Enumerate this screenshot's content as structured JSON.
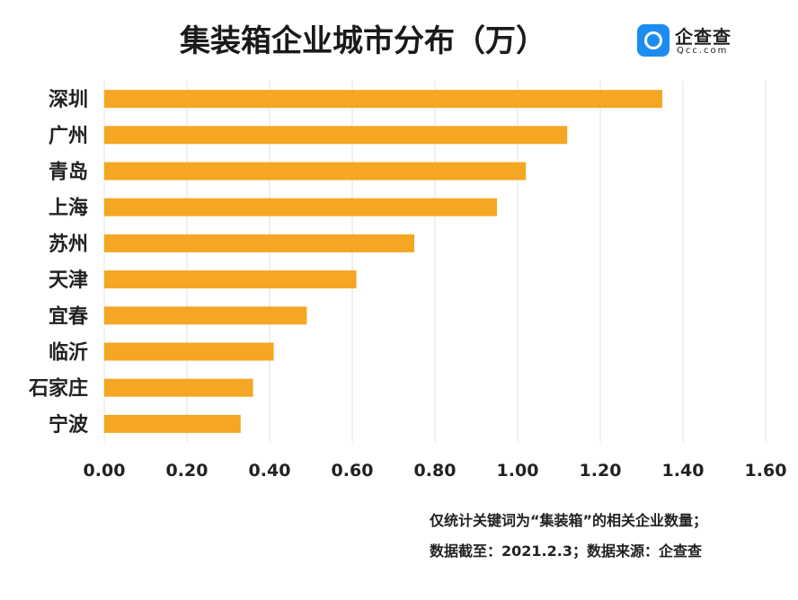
{
  "chart_data": {
    "type": "bar",
    "orientation": "horizontal",
    "title": "集装箱企业城市分布（万）",
    "categories": [
      "深圳",
      "广州",
      "青岛",
      "上海",
      "苏州",
      "天津",
      "宜春",
      "临沂",
      "石家庄",
      "宁波"
    ],
    "values": [
      1.35,
      1.12,
      1.02,
      0.95,
      0.75,
      0.61,
      0.49,
      0.41,
      0.36,
      0.33
    ],
    "xlim": [
      0,
      1.6
    ],
    "xticks": [
      "0.00",
      "0.20",
      "0.40",
      "0.60",
      "0.80",
      "1.00",
      "1.20",
      "1.40",
      "1.60"
    ],
    "grid": true,
    "bar_color": "#F5A623"
  },
  "logo": {
    "name": "企查查",
    "domain": "Qcc.com"
  },
  "notes": [
    "仅统计关键词为“集装箱”的相关企业数量；",
    "数据截至：2021.2.3；数据来源：企查查"
  ]
}
